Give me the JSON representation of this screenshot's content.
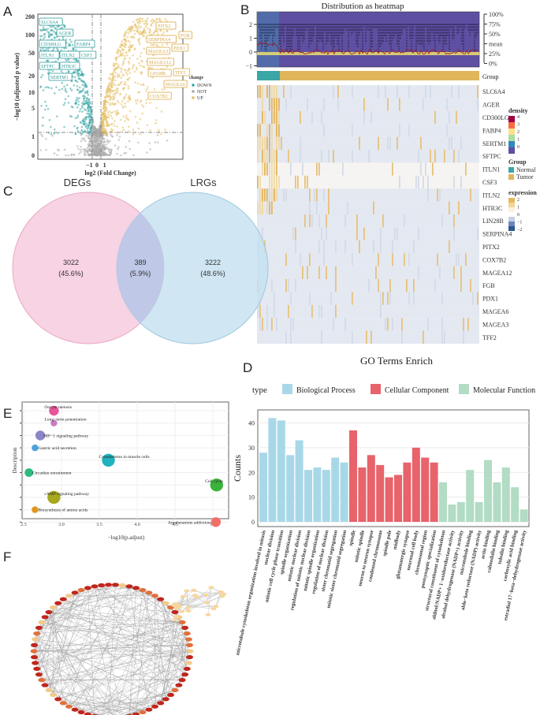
{
  "panels": {
    "A": "A",
    "B": "B",
    "C": "C",
    "D": "D",
    "E": "E",
    "F": "F"
  },
  "chart_data": [
    {
      "panel": "A",
      "type": "scatter",
      "xlabel": "log2 (Fold Change)",
      "ylabel": "−log10 (adjusted p value)",
      "xticks": [
        "−1",
        "0",
        "1"
      ],
      "yticks": [
        "200",
        "100",
        "50",
        "20",
        "10",
        "5",
        "1",
        "0"
      ],
      "legend": {
        "title": "change",
        "entries": [
          {
            "label": "DOWN",
            "color": "#3aa6a6"
          },
          {
            "label": "NOT",
            "color": "#a9a9a9"
          },
          {
            "label": "UP",
            "color": "#e6bd63"
          }
        ],
        "placement": "right"
      },
      "thresholds": {
        "log2fc": [
          -0.585,
          0.585
        ],
        "neg_log10_padj": 1.3
      },
      "labeled_down": [
        "SLC6A4",
        "AGER",
        "CD300LG",
        "FABP4",
        "ITLN1",
        "ITLN2",
        "CSF3",
        "SFTPC",
        "HTR3C",
        "SERTM1"
      ],
      "labeled_up": [
        "PITX2",
        "FGB",
        "SERPINA4",
        "PDX1",
        "MAGEA3",
        "MAGEA12",
        "LIN28B",
        "TFF2",
        "MAGEA6",
        "COX7B2"
      ]
    },
    {
      "panel": "B",
      "type": "heatmap",
      "title": "Distribution as heatmap",
      "density_yticks": [
        "2",
        "1",
        "0",
        "−1"
      ],
      "quantile_labels": [
        "100%",
        "75%",
        "50%",
        "mean",
        "25%",
        "0%"
      ],
      "group_label": "Group",
      "genes": [
        "SLC6A4",
        "AGER",
        "CD300LG",
        "FABP4",
        "SERTM1",
        "SFTPC",
        "ITLN1",
        "CSF3",
        "ITLN2",
        "HTR3C",
        "LIN28B",
        "SERPINA4",
        "PITX2",
        "COX7B2",
        "MAGEA12",
        "FGB",
        "PDX1",
        "MAGEA6",
        "MAGEA3",
        "TFF2"
      ],
      "legend": {
        "density": {
          "title": "density",
          "ticks": [
            "4",
            "3",
            "2",
            "1",
            "0"
          ]
        },
        "group": {
          "title": "Group",
          "entries": [
            {
              "label": "Normal",
              "color": "#3aa6a6"
            },
            {
              "label": "Tumor",
              "color": "#e0b55c"
            }
          ]
        },
        "expression": {
          "title": "expression",
          "ticks": [
            "2",
            "1",
            "0",
            "−1",
            "−2"
          ]
        }
      }
    },
    {
      "panel": "C",
      "type": "venn",
      "sets": [
        {
          "name": "DEGs",
          "only": "3022",
          "pct": "(45.6%)",
          "color": "#f7d3e3"
        },
        {
          "name": "LRGs",
          "only": "3222",
          "pct": "(48.6%)",
          "color": "#c4e1f0"
        }
      ],
      "intersection": {
        "value": "389",
        "pct": "(5.9%)"
      }
    },
    {
      "panel": "D",
      "type": "bar",
      "title": "GO Terms Enrich",
      "ylabel": "Counts",
      "ylim": [
        0,
        44
      ],
      "yticks": [
        "0",
        "10",
        "20",
        "30",
        "40"
      ],
      "legend_title": "type",
      "series": [
        {
          "name": "Biological Process",
          "color": "#a8d8e8",
          "categories": [
            "microtubule cytoskeleton organization involved in mitosis",
            "nuclear division",
            "mitotic cell cycle phase transition",
            "spindle organization",
            "mitotic nuclear division",
            "regulation of mitotic nuclear division",
            "mitotic spindle organization",
            "regulation of nuclear division",
            "sister chromatid segregation",
            "mitotic sister chromatid segregation"
          ],
          "values": [
            28,
            42,
            41,
            27,
            33,
            21,
            22,
            21,
            26,
            24
          ]
        },
        {
          "name": "Cellular Component",
          "color": "#e8636a",
          "categories": [
            "spindle",
            "mitotic spindle",
            "neuron to neuron synapse",
            "condensed chromosome",
            "spindle pole",
            "midbody",
            "glutamatergic synapse",
            "neuronal cell body",
            "chromosomal region",
            "postsynaptic specialization"
          ],
          "values": [
            37,
            22,
            27,
            23,
            18,
            19,
            24,
            30,
            26,
            24
          ]
        },
        {
          "name": "Molecular Function",
          "color": "#b2dcc4",
          "categories": [
            "structural constituent of cytoskeleton",
            "alditol:NADP+ 1−oxidoreductase activity",
            "alcohol dehydrogenase (NADP+) activity",
            "microtubule binding",
            "aldo−keto reductase (NADP) activity",
            "actin binding",
            "calmodulin binding",
            "tubulin binding",
            "carboxylic acid binding",
            "estradiol 17−beta−dehydrogenase activity"
          ],
          "values": [
            16,
            7,
            8,
            21,
            8,
            25,
            16,
            22,
            14,
            5
          ]
        }
      ]
    },
    {
      "panel": "E",
      "type": "scatter",
      "xlabel": "−log10(p.adjust)",
      "ylabel": "Description",
      "xlim": [
        2.49,
        5.21
      ],
      "xticks": [
        "2.5",
        "3.0",
        "3.5",
        "4.0",
        "4.5",
        "5.0"
      ],
      "points": [
        {
          "label": "Oocyte meiosis",
          "x": 2.9,
          "relative_size": 2,
          "color": "#e8579a"
        },
        {
          "label": "Long−term potentiation",
          "x": 2.9,
          "relative_size": 1,
          "color": "#c77cc4"
        },
        {
          "label": "HIF−1 signaling pathway",
          "x": 2.72,
          "relative_size": 2,
          "color": "#8b86c9"
        },
        {
          "label": "Gastric acid secretion",
          "x": 2.65,
          "relative_size": 1,
          "color": "#4aa3df"
        },
        {
          "label": "Cytoskeleton in muscle cells",
          "x": 3.62,
          "relative_size": 3,
          "color": "#1fb3bf"
        },
        {
          "label": "Circadian entrainment",
          "x": 2.57,
          "relative_size": 1.6,
          "color": "#2dba7d"
        },
        {
          "label": "Cell cycle",
          "x": 5.05,
          "relative_size": 3,
          "color": "#3bb23b"
        },
        {
          "label": "cAMP signaling pathway",
          "x": 2.9,
          "relative_size": 3,
          "color": "#a8a81e"
        },
        {
          "label": "Biosynthesis of amino acids",
          "x": 2.65,
          "relative_size": 1,
          "color": "#e2951a"
        },
        {
          "label": "Amphetamine addiction",
          "x": 5.04,
          "relative_size": 2,
          "color": "#f07068"
        }
      ]
    },
    {
      "panel": "F",
      "type": "network"
    }
  ]
}
